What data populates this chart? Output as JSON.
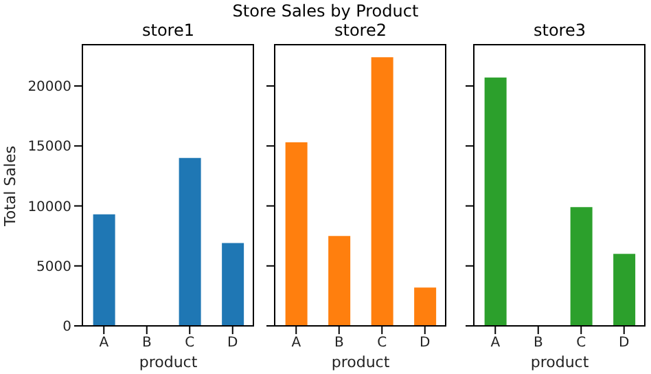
{
  "chart_data": [
    {
      "type": "bar",
      "title": "store1",
      "annotations": [
        "Store Sales by Product"
      ],
      "xlabel": "product",
      "ylabel": "Total Sales",
      "categories": [
        "A",
        "B",
        "C",
        "D"
      ],
      "series": [
        {
          "color": "#1f77b4",
          "values": [
            9300,
            null,
            14000,
            6900
          ]
        }
      ],
      "ylim": [
        0,
        23500
      ],
      "yticks": [
        0,
        5000,
        10000,
        15000,
        20000
      ],
      "grid": false,
      "legend": false
    },
    {
      "type": "bar",
      "title": "store2",
      "xlabel": "product",
      "categories": [
        "A",
        "B",
        "C",
        "D"
      ],
      "series": [
        {
          "color": "#ff7f0e",
          "values": [
            15300,
            7500,
            22400,
            3200
          ]
        }
      ],
      "ylim": [
        0,
        23500
      ],
      "yticks": [
        0,
        5000,
        10000,
        15000,
        20000
      ],
      "tick_labels": "x",
      "grid": false,
      "legend": false
    },
    {
      "type": "bar",
      "title": "store3",
      "xlabel": "product",
      "categories": [
        "A",
        "B",
        "C",
        "D"
      ],
      "series": [
        {
          "color": "#2ca02c",
          "values": [
            20700,
            null,
            9900,
            6000
          ]
        }
      ],
      "ylim": [
        0,
        23500
      ],
      "yticks": [
        0,
        5000,
        10000,
        15000,
        20000
      ],
      "tick_labels": "x",
      "grid": false,
      "legend": false
    }
  ]
}
